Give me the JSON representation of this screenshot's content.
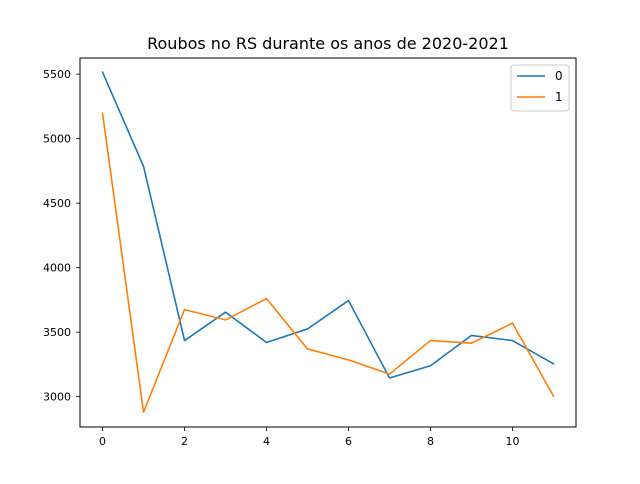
{
  "chart_data": {
    "type": "line",
    "title": "Roubos no RS durante os anos de 2020-2021",
    "xlabel": "",
    "ylabel": "",
    "x": [
      0,
      1,
      2,
      3,
      4,
      5,
      6,
      7,
      8,
      9,
      10,
      11
    ],
    "xlim": [
      -0.55,
      11.55
    ],
    "ylim": [
      2765,
      5625
    ],
    "x_ticks": [
      0,
      2,
      4,
      6,
      8,
      10
    ],
    "y_ticks": [
      3000,
      3500,
      4000,
      4500,
      5000,
      5500
    ],
    "grid": false,
    "legend_position": "top-right",
    "series": [
      {
        "name": "0",
        "color": "#1f77b4",
        "values": [
          5515,
          4785,
          3435,
          3655,
          3420,
          3525,
          3745,
          3145,
          3240,
          3475,
          3435,
          3255
        ]
      },
      {
        "name": "1",
        "color": "#ff7f0e",
        "values": [
          5195,
          2880,
          3675,
          3595,
          3760,
          3370,
          3285,
          3175,
          3435,
          3415,
          3570,
          3005
        ]
      }
    ]
  }
}
